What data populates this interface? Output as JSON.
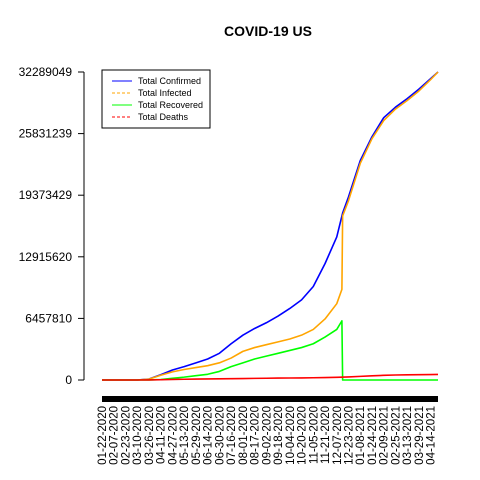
{
  "chart_data": {
    "type": "line",
    "title": "COVID-19 US",
    "xlabel": "",
    "ylabel": "",
    "ylim": [
      0,
      32289049
    ],
    "y_ticks": [
      0,
      6457810,
      12915620,
      19373429,
      25831239,
      32289049
    ],
    "y_tick_labels": [
      "0",
      "6457810",
      "12915620",
      "19373429",
      "25831239",
      "32289049"
    ],
    "x_tick_labels": [
      "01-22-2020",
      "02-07-2020",
      "02-23-2020",
      "03-10-2020",
      "03-26-2020",
      "04-11-2020",
      "04-27-2020",
      "05-13-2020",
      "05-29-2020",
      "06-14-2020",
      "06-30-2020",
      "07-16-2020",
      "08-01-2020",
      "08-17-2020",
      "09-02-2020",
      "09-18-2020",
      "10-04-2020",
      "10-20-2020",
      "11-05-2020",
      "11-21-2020",
      "12-07-2020",
      "12-23-2020",
      "01-08-2021",
      "01-24-2021",
      "02-09-2021",
      "02-25-2021",
      "03-13-2021",
      "03-29-2021",
      "04-14-2021"
    ],
    "legend_position": "top-left",
    "series": [
      {
        "name": "Total Confirmed",
        "color": "#0000ff",
        "dash": "solid",
        "x": [
          0,
          16,
          32,
          48,
          64,
          80,
          96,
          112,
          128,
          144,
          160,
          176,
          192,
          208,
          224,
          240,
          256,
          272,
          288,
          304,
          320,
          328,
          336,
          352,
          368,
          384,
          400,
          416,
          432,
          448,
          458
        ],
        "values": [
          1,
          15,
          30,
          1000,
          100000,
          550000,
          1050000,
          1400000,
          1800000,
          2200000,
          2800000,
          3800000,
          4700000,
          5400000,
          6000000,
          6700000,
          7500000,
          8400000,
          9800000,
          12200000,
          15000000,
          17500000,
          19200000,
          23000000,
          25500000,
          27500000,
          28600000,
          29500000,
          30500000,
          31600000,
          32289049
        ]
      },
      {
        "name": "Total Infected",
        "color": "#ffa500",
        "dash": "dashed",
        "x": [
          0,
          16,
          32,
          48,
          64,
          80,
          96,
          112,
          128,
          144,
          160,
          176,
          192,
          208,
          224,
          240,
          256,
          272,
          288,
          304,
          320,
          327,
          328,
          336,
          352,
          368,
          384,
          400,
          416,
          432,
          448,
          458
        ],
        "values": [
          1,
          15,
          30,
          950,
          90000,
          500000,
          850000,
          1100000,
          1300000,
          1500000,
          1800000,
          2300000,
          3000000,
          3400000,
          3700000,
          4000000,
          4300000,
          4700000,
          5300000,
          6400000,
          8000000,
          9500000,
          17200000,
          18800000,
          22700000,
          25300000,
          27200000,
          28400000,
          29300000,
          30300000,
          31500000,
          32289049
        ]
      },
      {
        "name": "Total Recovered",
        "color": "#00ff00",
        "dash": "solid",
        "x": [
          0,
          16,
          32,
          48,
          64,
          80,
          96,
          112,
          128,
          144,
          160,
          176,
          192,
          208,
          224,
          240,
          256,
          272,
          288,
          304,
          320,
          327,
          328,
          336,
          352,
          368,
          384,
          400,
          416,
          432,
          448,
          458
        ],
        "values": [
          0,
          0,
          0,
          10,
          5000,
          50000,
          180000,
          300000,
          450000,
          600000,
          900000,
          1400000,
          1800000,
          2200000,
          2500000,
          2800000,
          3100000,
          3400000,
          3800000,
          4500000,
          5300000,
          6200000,
          0,
          0,
          0,
          0,
          0,
          0,
          0,
          0,
          0,
          0
        ]
      },
      {
        "name": "Total Deaths",
        "color": "#ff0000",
        "dash": "dashed",
        "x": [
          0,
          16,
          32,
          48,
          64,
          80,
          96,
          112,
          128,
          144,
          160,
          176,
          192,
          208,
          224,
          240,
          256,
          272,
          288,
          304,
          320,
          336,
          352,
          368,
          384,
          400,
          416,
          432,
          448,
          458
        ],
        "values": [
          0,
          0,
          0,
          50,
          3000,
          25000,
          55000,
          80000,
          100000,
          115000,
          125000,
          140000,
          155000,
          170000,
          185000,
          200000,
          210000,
          220000,
          235000,
          255000,
          285000,
          325000,
          380000,
          440000,
          490000,
          525000,
          545000,
          560000,
          575000,
          585000
        ]
      }
    ]
  }
}
